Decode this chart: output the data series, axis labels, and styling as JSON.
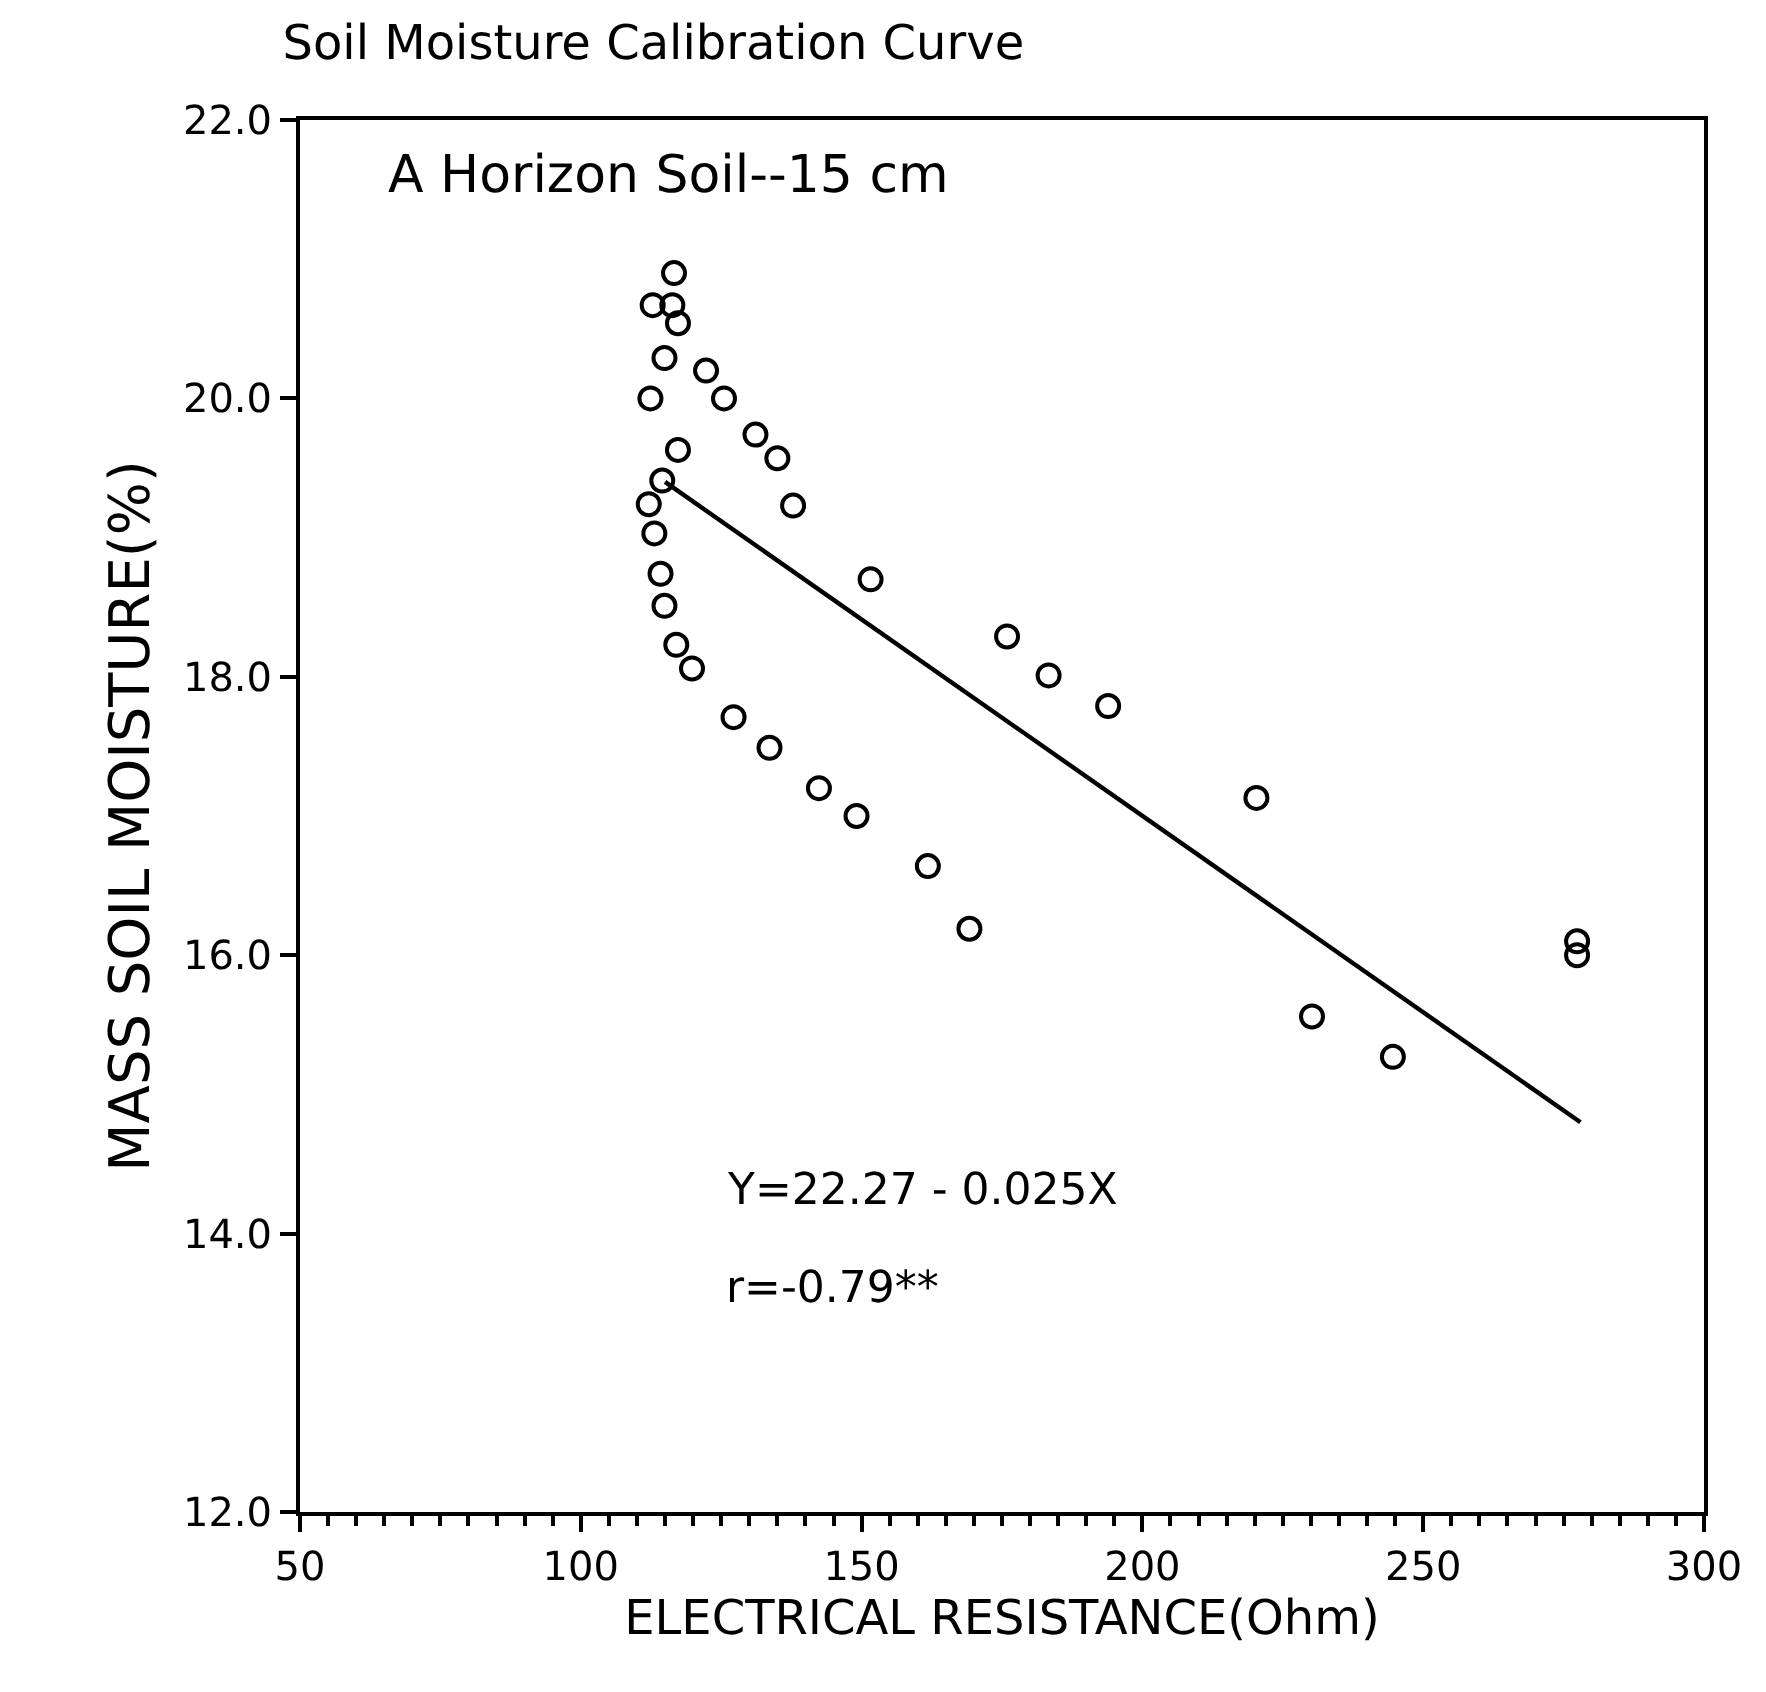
{
  "chart_data": {
    "type": "scatter",
    "title": "Soil Moisture Calibration Curve",
    "xlabel": "ELECTRICAL RESISTANCE(Ohm)",
    "ylabel": "MASS SOIL MOISTURE(%)",
    "annotations": [
      "A Horizon Soil--15 cm",
      "Y=22.27 - 0.025X",
      "r=-0.79**"
    ],
    "xlim": [
      50,
      300
    ],
    "xticks": [
      50,
      100,
      150,
      200,
      250,
      300
    ],
    "ylim": [
      12,
      22
    ],
    "yticks": [
      {
        "value": 12,
        "label": "12.0"
      },
      {
        "value": 14,
        "label": "14.0"
      },
      {
        "value": 16,
        "label": "16.0"
      },
      {
        "value": 18,
        "label": "18.0"
      },
      {
        "value": 20,
        "label": "20.0"
      },
      {
        "value": 22,
        "label": "22.0"
      }
    ],
    "grid": false,
    "series": [
      {
        "marker": "circle",
        "color": "#000000",
        "x": [
          116.6,
          112.8,
          116.3,
          117.3,
          114.9,
          122.3,
          125.5,
          112.4,
          131.1,
          135,
          117.3,
          114.5,
          112.1,
          137.8,
          113.1,
          114.2,
          114.9,
          151.6,
          117,
          119.8,
          127.2,
          133.6,
          142.4,
          149.1,
          161.8,
          169.2,
          175.9,
          183.3,
          193.9,
          220.3,
          230.2,
          244.6,
          277.4,
          277.4
        ],
        "values": [
          20.9,
          20.67,
          20.67,
          20.54,
          20.29,
          20.2,
          20.0,
          20.0,
          19.74,
          19.57,
          19.63,
          19.41,
          19.24,
          19.23,
          19.03,
          18.74,
          18.51,
          18.7,
          18.23,
          18.06,
          17.71,
          17.49,
          17.2,
          17.0,
          16.64,
          16.19,
          18.29,
          18.01,
          17.79,
          17.13,
          15.56,
          15.27,
          16.1,
          16.0
        ]
      },
      {
        "type": "line",
        "marker": "none",
        "line_style": "solid",
        "color": "#000000",
        "x": [
          115,
          278
        ],
        "values": [
          19.4,
          14.8
        ]
      }
    ]
  }
}
